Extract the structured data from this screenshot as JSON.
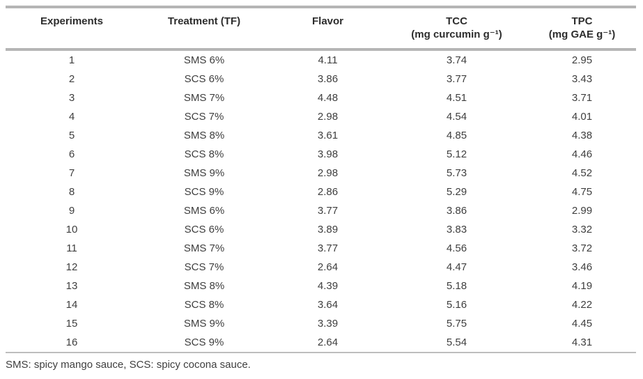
{
  "table": {
    "columns": [
      {
        "label": "Experiments",
        "unit": ""
      },
      {
        "label": "Treatment (TF)",
        "unit": ""
      },
      {
        "label": "Flavor",
        "unit": ""
      },
      {
        "label": "TCC",
        "unit": "(mg curcumin g⁻¹)"
      },
      {
        "label": "TPC",
        "unit": "(mg GAE g⁻¹)"
      }
    ],
    "rows": [
      [
        "1",
        "SMS 6%",
        "4.11",
        "3.74",
        "2.95"
      ],
      [
        "2",
        "SCS 6%",
        "3.86",
        "3.77",
        "3.43"
      ],
      [
        "3",
        "SMS 7%",
        "4.48",
        "4.51",
        "3.71"
      ],
      [
        "4",
        "SCS 7%",
        "2.98",
        "4.54",
        "4.01"
      ],
      [
        "5",
        "SMS 8%",
        "3.61",
        "4.85",
        "4.38"
      ],
      [
        "6",
        "SCS 8%",
        "3.98",
        "5.12",
        "4.46"
      ],
      [
        "7",
        "SMS 9%",
        "2.98",
        "5.73",
        "4.52"
      ],
      [
        "8",
        "SCS 9%",
        "2.86",
        "5.29",
        "4.75"
      ],
      [
        "9",
        "SMS 6%",
        "3.77",
        "3.86",
        "2.99"
      ],
      [
        "10",
        "SCS 6%",
        "3.89",
        "3.83",
        "3.32"
      ],
      [
        "11",
        "SMS 7%",
        "3.77",
        "4.56",
        "3.72"
      ],
      [
        "12",
        "SCS 7%",
        "2.64",
        "4.47",
        "3.46"
      ],
      [
        "13",
        "SMS 8%",
        "4.39",
        "5.18",
        "4.19"
      ],
      [
        "14",
        "SCS 8%",
        "3.64",
        "5.16",
        "4.22"
      ],
      [
        "15",
        "SMS 9%",
        "3.39",
        "5.75",
        "4.45"
      ],
      [
        "16",
        "SCS 9%",
        "2.64",
        "5.54",
        "4.31"
      ]
    ],
    "footnote": "SMS: spicy mango sauce, SCS: spicy cocona sauce.",
    "border_color": "#b5b5b5",
    "text_color": "#3e3e3e",
    "header_text_color": "#2d2d2d"
  }
}
